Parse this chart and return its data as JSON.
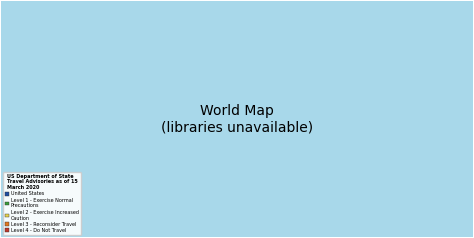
{
  "title": "US Department of State\nTravel Advisories as of 15\nMarch 2020",
  "legend_entries": [
    {
      "label": "United States",
      "color": "#1f4ea1"
    },
    {
      "label": "Level 1 - Exercise Normal\nPrecautions",
      "color": "#3a9e3a"
    },
    {
      "label": "Level 2 - Exercise Increased\nCaution",
      "color": "#e8d44d"
    },
    {
      "label": "Level 3 - Reconsider Travel",
      "color": "#e07820"
    },
    {
      "label": "Level 4 - Do Not Travel",
      "color": "#c0392b"
    }
  ],
  "background_color": "#ffffff",
  "ocean_color": "#a8d8ea",
  "figsize": [
    4.74,
    2.38
  ],
  "dpi": 100,
  "country_colors": {
    "United States of America": "#1f4ea1",
    "Canada": "#3a9e3a",
    "Australia": "#3a9e3a",
    "New Zealand": "#3a9e3a",
    "Japan": "#3a9e3a",
    "South Korea": "#3a9e3a",
    "Taiwan": "#3a9e3a",
    "Singapore": "#3a9e3a",
    "United Kingdom": "#3a9e3a",
    "Ireland": "#3a9e3a",
    "France": "#3a9e3a",
    "Germany": "#3a9e3a",
    "Italy": "#3a9e3a",
    "Spain": "#3a9e3a",
    "Portugal": "#3a9e3a",
    "Netherlands": "#3a9e3a",
    "Belgium": "#3a9e3a",
    "Luxembourg": "#3a9e3a",
    "Switzerland": "#3a9e3a",
    "Austria": "#3a9e3a",
    "Denmark": "#3a9e3a",
    "Sweden": "#3a9e3a",
    "Norway": "#3a9e3a",
    "Finland": "#3a9e3a",
    "Iceland": "#3a9e3a",
    "Estonia": "#3a9e3a",
    "Latvia": "#3a9e3a",
    "Lithuania": "#3a9e3a",
    "Poland": "#3a9e3a",
    "Czech Rep.": "#3a9e3a",
    "Czechia": "#3a9e3a",
    "Slovakia": "#3a9e3a",
    "Hungary": "#3a9e3a",
    "Romania": "#3a9e3a",
    "Bulgaria": "#3a9e3a",
    "Greece": "#3a9e3a",
    "Croatia": "#3a9e3a",
    "Slovenia": "#3a9e3a",
    "Malta": "#3a9e3a",
    "Cyprus": "#3a9e3a",
    "Oman": "#3a9e3a",
    "United Arab Emirates": "#3a9e3a",
    "Qatar": "#3a9e3a",
    "Kuwait": "#3a9e3a",
    "Bahrain": "#3a9e3a",
    "Maldives": "#3a9e3a",
    "Mauritius": "#3a9e3a",
    "Seychelles": "#3a9e3a",
    "Palau": "#3a9e3a",
    "Micronesia": "#3a9e3a",
    "Marshall Is.": "#3a9e3a",
    "Afghanistan": "#c0392b",
    "Iraq": "#c0392b",
    "Syria": "#c0392b",
    "Libya": "#c0392b",
    "Yemen": "#c0392b",
    "Somalia": "#c0392b",
    "Sudan": "#c0392b",
    "S. Sudan": "#c0392b",
    "South Sudan": "#c0392b",
    "Central African Rep.": "#c0392b",
    "Central African Republic": "#c0392b",
    "Mali": "#c0392b",
    "Burkina Faso": "#c0392b",
    "Venezuela": "#c0392b",
    "Haiti": "#c0392b",
    "North Korea": "#c0392b",
    "Iran": "#c0392b",
    "Niger": "#c0392b",
    "Russia": "#c0392b",
    "Belarus": "#c0392b",
    "Ukraine": "#e07820",
    "China": "#e07820",
    "Saudi Arabia": "#e07820",
    "Egypt": "#c0392b",
    "Turkey": "#e07820",
    "Pakistan": "#c0392b",
    "Nigeria": "#c0392b",
    "Ethiopia": "#c0392b",
    "Kenya": "#e07820",
    "Uganda": "#e07820",
    "Cameroon": "#c0392b",
    "Dem. Rep. Congo": "#c0392b",
    "Congo": "#c0392b",
    "Mozambique": "#e07820",
    "Zimbabwe": "#e07820",
    "Kosovo": "#e8d44d",
    "Honduras": "#e07820",
    "El Salvador": "#e07820",
    "Guatemala": "#e07820",
    "Ecuador": "#e07820",
    "Colombia": "#e07820",
    "Papua New Guinea": "#e07820",
    "Mexico": "#e07820",
    "Myanmar": "#e07820",
    "Bangladesh": "#e07820",
    "Chad": "#c0392b",
    "India": "#e8d44d",
    "Brazil": "#e8d44d",
    "Peru": "#e8d44d",
    "Bolivia": "#e8d44d",
    "Argentina": "#e8d44d",
    "Indonesia": "#e8d44d",
    "Malaysia": "#e8d44d",
    "Thailand": "#e8d44d",
    "Philippines": "#e8d44d",
    "Vietnam": "#e8d44d",
    "Cambodia": "#e8d44d",
    "Laos": "#e8d44d",
    "Mongolia": "#e8d44d",
    "Kazakhstan": "#e8d44d",
    "Uzbekistan": "#e8d44d",
    "Tajikistan": "#e8d44d",
    "Kyrgyzstan": "#e8d44d",
    "Turkmenistan": "#e8d44d",
    "Azerbaijan": "#e8d44d",
    "Georgia": "#e8d44d",
    "Armenia": "#e8d44d",
    "Jordan": "#e8d44d",
    "Lebanon": "#e07820",
    "Israel": "#e8d44d",
    "Morocco": "#e8d44d",
    "Algeria": "#e8d44d",
    "Tunisia": "#e8d44d",
    "Senegal": "#e8d44d",
    "Ivory Coast": "#e8d44d",
    "Côte d'Ivoire": "#e8d44d",
    "Ghana": "#e8d44d",
    "Tanzania": "#e07820",
    "Zambia": "#e8d44d",
    "Angola": "#e8d44d",
    "Madagascar": "#e8d44d",
    "Eritrea": "#c0392b",
    "Djibouti": "#e07820",
    "Sri Lanka": "#e8d44d",
    "Nepal": "#e8d44d",
    "Bhutan": "#e8d44d",
    "Albania": "#e8d44d",
    "Serbia": "#e8d44d",
    "Bosnia and Herz.": "#e8d44d",
    "North Macedonia": "#e8d44d",
    "Moldova": "#e8d44d",
    "Paraguay": "#e8d44d",
    "Uruguay": "#e8d44d",
    "Nicaragua": "#e07820",
    "Cuba": "#e8d44d",
    "Dominican Rep.": "#e8d44d",
    "Jamaica": "#e8d44d",
    "Guyana": "#e8d44d",
    "Suriname": "#e8d44d",
    "Belize": "#e8d44d",
    "Panama": "#e8d44d",
    "Costa Rica": "#e8d44d",
    "Chile": "#e8d44d",
    "South Africa": "#e8d44d",
    "Namibia": "#e8d44d",
    "Botswana": "#e8d44d",
    "Lesotho": "#e8d44d",
    "eSwatini": "#e8d44d",
    "Swaziland": "#e8d44d",
    "Rwanda": "#e07820",
    "Burundi": "#c0392b",
    "Malawi": "#e8d44d",
    "Benin": "#e8d44d",
    "Togo": "#e8d44d",
    "Sierra Leone": "#e8d44d",
    "Liberia": "#e8d44d",
    "Guinea": "#e8d44d",
    "Guinea-Bissau": "#e8d44d",
    "Gambia": "#e8d44d",
    "Mauritania": "#e8d44d",
    "Gabon": "#e8d44d",
    "Eq. Guinea": "#e8d44d",
    "Equatorial Guinea": "#e8d44d",
    "Timor-Leste": "#e8d44d",
    "Fiji": "#e8d44d",
    "Solomon Is.": "#e8d44d",
    "Vanuatu": "#e8d44d",
    "W. Sahara": "#e8d44d",
    "Somaliland": "#c0392b",
    "Greenland": "#3a9e3a",
    "Puerto Rico": "#1f4ea1",
    "Guam": "#1f4ea1",
    "N. Cyprus": "#e8d44d",
    "Brunei": "#3a9e3a"
  }
}
